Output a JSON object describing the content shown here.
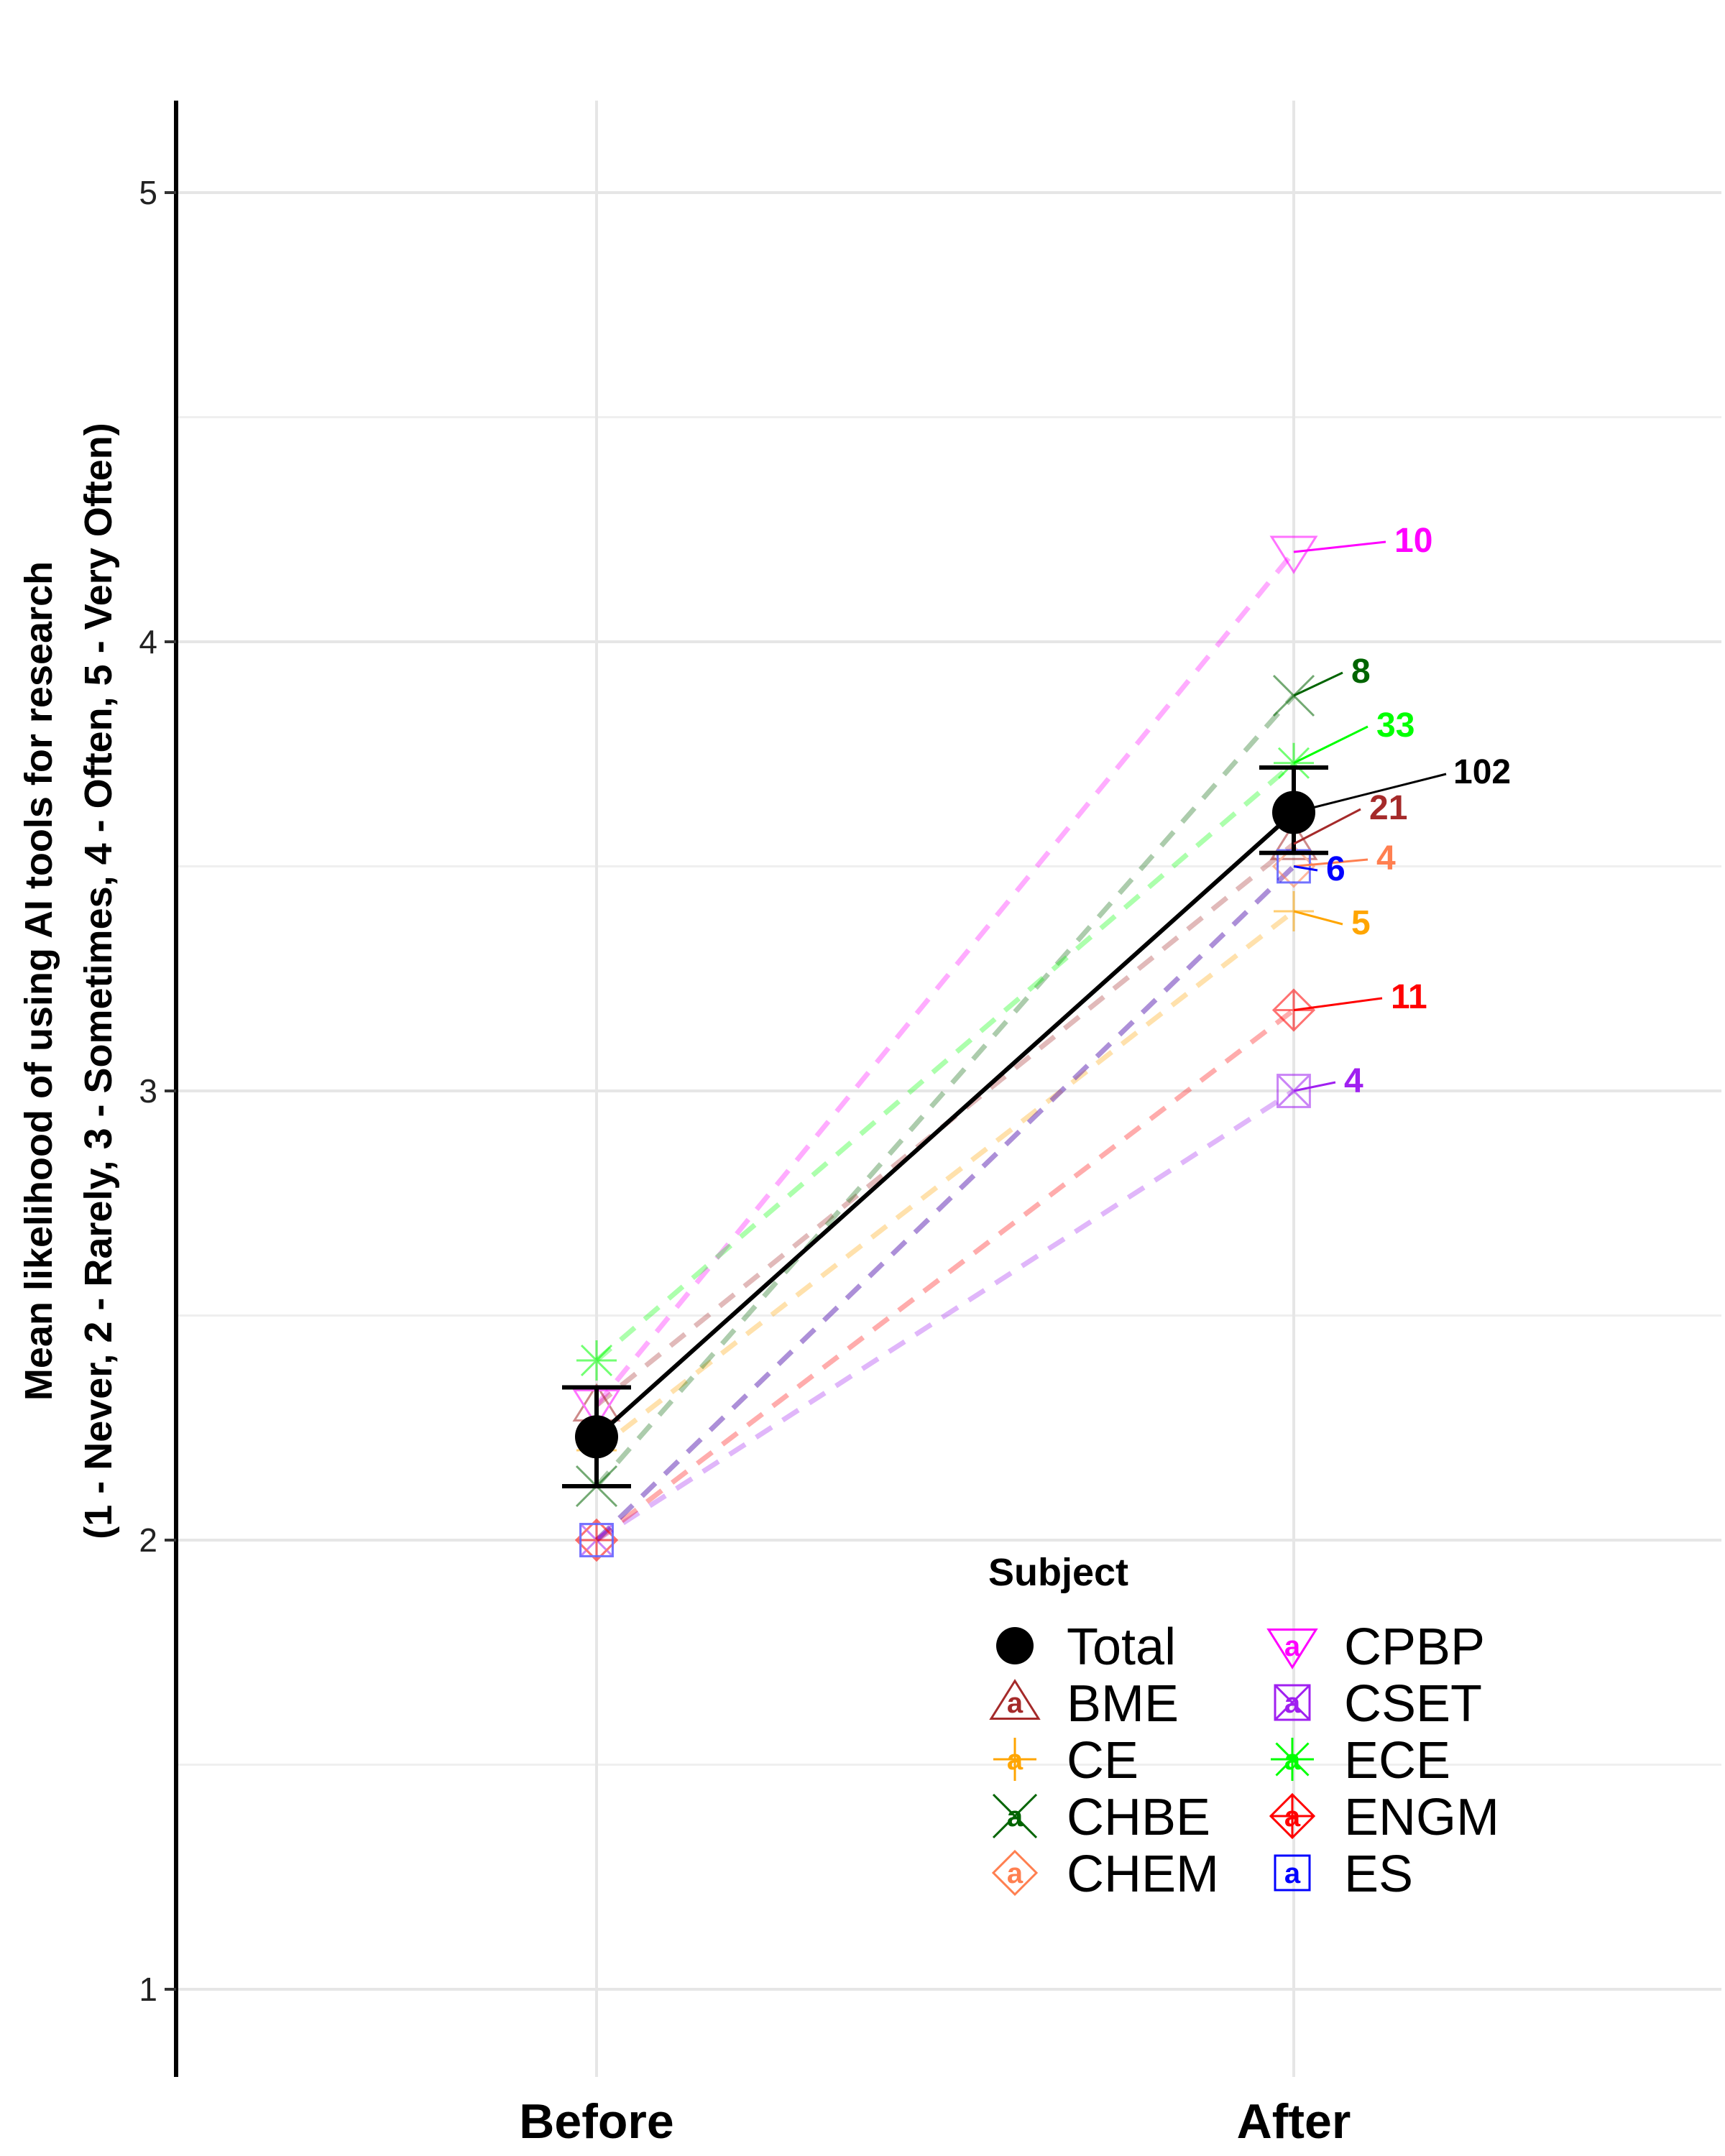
{
  "chart_data": {
    "type": "line",
    "x": [
      "Before",
      "After"
    ],
    "ylim": [
      0.8,
      5.2
    ],
    "yticks": [
      1,
      2,
      3,
      4,
      5
    ],
    "ylabel_line1": "Mean likelihood of using AI tools for research",
    "ylabel_line2": "(1 - Never, 2 - Rarely, 3 - Sometimes, 4 - Often, 5 - Very Often)",
    "grid": true,
    "legend_title": "Subject",
    "legend_placement": "bottom-right",
    "total": {
      "name": "Total",
      "values": [
        2.23,
        3.62
      ],
      "error_low": [
        2.12,
        3.53
      ],
      "error_high": [
        2.34,
        3.72
      ],
      "n": "102",
      "color": "#000000"
    },
    "series": [
      {
        "name": "BME",
        "values": [
          2.3,
          3.55
        ],
        "n": "21",
        "color": "#A52A2A",
        "shape": "triangle-up"
      },
      {
        "name": "CE",
        "values": [
          2.2,
          3.4
        ],
        "n": "5",
        "color": "#FFA500",
        "shape": "plus"
      },
      {
        "name": "CHBE",
        "values": [
          2.12,
          3.88
        ],
        "n": "8",
        "color": "#006400",
        "shape": "cross"
      },
      {
        "name": "CHEM",
        "values": [
          2.0,
          3.5
        ],
        "n": "4",
        "color": "#FF7F50",
        "shape": "diamond"
      },
      {
        "name": "CPBP",
        "values": [
          2.3,
          4.2
        ],
        "n": "10",
        "color": "#FF00FF",
        "shape": "triangle-down"
      },
      {
        "name": "CSET",
        "values": [
          2.0,
          3.0
        ],
        "n": "4",
        "color": "#A020F0",
        "shape": "square-x"
      },
      {
        "name": "ECE",
        "values": [
          2.4,
          3.73
        ],
        "n": "33",
        "color": "#00FF00",
        "shape": "asterisk"
      },
      {
        "name": "ENGM",
        "values": [
          2.0,
          3.18
        ],
        "n": "11",
        "color": "#FF0000",
        "shape": "diamond-plus"
      },
      {
        "name": "ES",
        "values": [
          2.0,
          3.5
        ],
        "n": "6",
        "color": "#0000FF",
        "shape": "square"
      }
    ]
  }
}
